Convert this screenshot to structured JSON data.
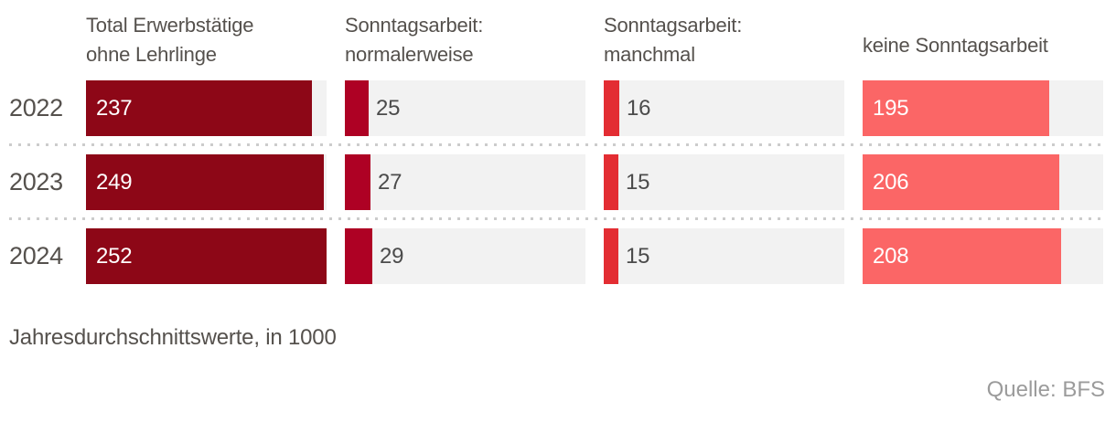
{
  "chart_data": {
    "type": "bar",
    "orientation": "horizontal",
    "categories": [
      "2022",
      "2023",
      "2024"
    ],
    "series": [
      {
        "name": "Total Erwerbstätige ohne Lehrlinge",
        "header": "Total Erwerbstätige\nohne Lehrlinge",
        "color": "#8d0717",
        "values": [
          237,
          249,
          252
        ],
        "value_label_position": "inside"
      },
      {
        "name": "Sonntagsarbeit: normalerweise",
        "header": "Sonntagsarbeit:\nnormalerweise",
        "color": "#ae0124",
        "values": [
          25,
          27,
          29
        ],
        "value_label_position": "outside"
      },
      {
        "name": "Sonntagsarbeit: manchmal",
        "header": "Sonntagsarbeit:\nmanchmal",
        "color": "#e32d33",
        "values": [
          16,
          15,
          15
        ],
        "value_label_position": "outside"
      },
      {
        "name": "keine Sonntagsarbeit",
        "header": "keine Sonntagsarbeit",
        "color": "#fb6666",
        "values": [
          195,
          206,
          208
        ],
        "value_label_position": "inside"
      }
    ],
    "xmax": 252,
    "track_background": "#f2f2f2",
    "grid": false,
    "legend_position": "none",
    "footnote": "Jahresdurchschnittswerte, in 1000",
    "source": "Quelle: BFS"
  }
}
